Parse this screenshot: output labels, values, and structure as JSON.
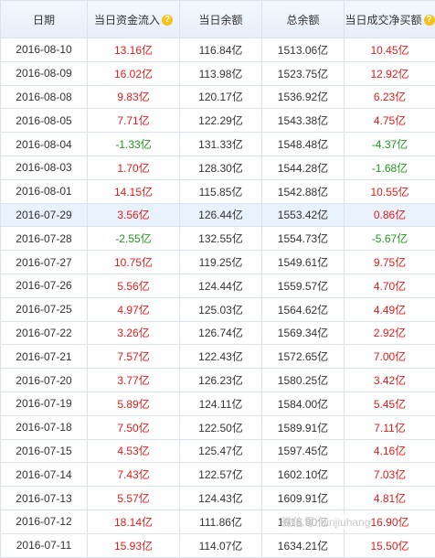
{
  "columns": [
    "日期",
    "当日资金流入",
    "当日余额",
    "总余额",
    "当日成交净买额"
  ],
  "help_icon_glyph": "?",
  "watermark": "微信号: binjiuhang",
  "colors": {
    "positive": "#e61a1a",
    "negative": "#1e9a1e",
    "highlight_row": "#e8f2fc"
  },
  "rows": [
    {
      "date": "2016-08-10",
      "inflow": "13.16亿",
      "day_bal": "116.84亿",
      "total": "1513.06亿",
      "net": "10.45亿"
    },
    {
      "date": "2016-08-09",
      "inflow": "16.02亿",
      "day_bal": "113.98亿",
      "total": "1523.75亿",
      "net": "12.92亿"
    },
    {
      "date": "2016-08-08",
      "inflow": "9.83亿",
      "day_bal": "120.17亿",
      "total": "1536.92亿",
      "net": "6.23亿"
    },
    {
      "date": "2016-08-05",
      "inflow": "7.71亿",
      "day_bal": "122.29亿",
      "total": "1543.38亿",
      "net": "4.75亿"
    },
    {
      "date": "2016-08-04",
      "inflow": "-1.33亿",
      "day_bal": "131.33亿",
      "total": "1548.48亿",
      "net": "-4.37亿"
    },
    {
      "date": "2016-08-03",
      "inflow": "1.70亿",
      "day_bal": "128.30亿",
      "total": "1544.28亿",
      "net": "-1.68亿"
    },
    {
      "date": "2016-08-01",
      "inflow": "14.15亿",
      "day_bal": "115.85亿",
      "total": "1542.88亿",
      "net": "10.55亿"
    },
    {
      "date": "2016-07-29",
      "inflow": "3.56亿",
      "day_bal": "126.44亿",
      "total": "1553.42亿",
      "net": "0.86亿"
    },
    {
      "date": "2016-07-28",
      "inflow": "-2.55亿",
      "day_bal": "132.55亿",
      "total": "1554.73亿",
      "net": "-5.67亿"
    },
    {
      "date": "2016-07-27",
      "inflow": "10.75亿",
      "day_bal": "119.25亿",
      "total": "1549.61亿",
      "net": "9.75亿"
    },
    {
      "date": "2016-07-26",
      "inflow": "5.56亿",
      "day_bal": "124.44亿",
      "total": "1559.57亿",
      "net": "4.70亿"
    },
    {
      "date": "2016-07-25",
      "inflow": "4.97亿",
      "day_bal": "125.03亿",
      "total": "1564.62亿",
      "net": "4.49亿"
    },
    {
      "date": "2016-07-22",
      "inflow": "3.26亿",
      "day_bal": "126.74亿",
      "total": "1569.34亿",
      "net": "2.92亿"
    },
    {
      "date": "2016-07-21",
      "inflow": "7.57亿",
      "day_bal": "122.43亿",
      "total": "1572.65亿",
      "net": "7.00亿"
    },
    {
      "date": "2016-07-20",
      "inflow": "3.77亿",
      "day_bal": "126.23亿",
      "total": "1580.25亿",
      "net": "3.42亿"
    },
    {
      "date": "2016-07-19",
      "inflow": "5.89亿",
      "day_bal": "124.11亿",
      "total": "1584.00亿",
      "net": "5.45亿"
    },
    {
      "date": "2016-07-18",
      "inflow": "7.50亿",
      "day_bal": "122.50亿",
      "total": "1589.91亿",
      "net": "7.11亿"
    },
    {
      "date": "2016-07-15",
      "inflow": "4.53亿",
      "day_bal": "125.47亿",
      "total": "1597.45亿",
      "net": "4.16亿"
    },
    {
      "date": "2016-07-14",
      "inflow": "7.43亿",
      "day_bal": "122.57亿",
      "total": "1602.10亿",
      "net": "7.03亿"
    },
    {
      "date": "2016-07-13",
      "inflow": "5.57亿",
      "day_bal": "124.43亿",
      "total": "1609.91亿",
      "net": "4.81亿"
    },
    {
      "date": "2016-07-12",
      "inflow": "18.14亿",
      "day_bal": "111.86亿",
      "total": "1616.80亿",
      "net": "16.90亿"
    },
    {
      "date": "2016-07-11",
      "inflow": "15.93亿",
      "day_bal": "114.07亿",
      "total": "1634.21亿",
      "net": "15.50亿"
    }
  ]
}
